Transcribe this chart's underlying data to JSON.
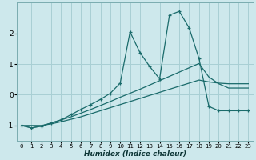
{
  "xlabel": "Humidex (Indice chaleur)",
  "background_color": "#cde8ec",
  "grid_color": "#a8cfd4",
  "line_color": "#1a6b6b",
  "xlim": [
    -0.5,
    23.5
  ],
  "ylim": [
    -1.5,
    3.0
  ],
  "yticks": [
    -1,
    0,
    1,
    2
  ],
  "xticks": [
    0,
    1,
    2,
    3,
    4,
    5,
    6,
    7,
    8,
    9,
    10,
    11,
    12,
    13,
    14,
    15,
    16,
    17,
    18,
    19,
    20,
    21,
    22,
    23
  ],
  "series1_x": [
    0,
    1,
    2,
    3,
    4,
    5,
    6,
    7,
    8,
    9,
    10,
    11,
    12,
    13,
    14,
    15,
    16,
    17,
    18,
    19,
    20,
    21,
    22,
    23
  ],
  "series1_y": [
    -1.0,
    -1.0,
    -1.0,
    -0.95,
    -0.88,
    -0.8,
    -0.72,
    -0.62,
    -0.52,
    -0.42,
    -0.32,
    -0.22,
    -0.12,
    -0.02,
    0.08,
    0.18,
    0.28,
    0.38,
    0.48,
    0.42,
    0.38,
    0.36,
    0.36,
    0.36
  ],
  "series2_x": [
    0,
    1,
    2,
    3,
    4,
    5,
    6,
    7,
    8,
    9,
    10,
    11,
    12,
    13,
    14,
    15,
    16,
    17,
    18,
    19,
    20,
    21,
    22,
    23
  ],
  "series2_y": [
    -1.0,
    -1.08,
    -1.02,
    -0.92,
    -0.82,
    -0.72,
    -0.6,
    -0.48,
    -0.35,
    -0.22,
    -0.08,
    0.05,
    0.18,
    0.32,
    0.46,
    0.6,
    0.74,
    0.88,
    1.02,
    0.58,
    0.36,
    0.22,
    0.22,
    0.22
  ],
  "series3_x": [
    0,
    1,
    2,
    3,
    4,
    5,
    6,
    7,
    8,
    9,
    10,
    11,
    12,
    13,
    14,
    15,
    16,
    17,
    18,
    19,
    20,
    21,
    22,
    23
  ],
  "series3_y": [
    -1.0,
    -1.08,
    -1.02,
    -0.92,
    -0.82,
    -0.65,
    -0.48,
    -0.32,
    -0.15,
    0.05,
    0.38,
    2.05,
    1.38,
    0.92,
    0.52,
    2.6,
    2.72,
    2.18,
    1.18,
    -0.38,
    -0.52,
    -0.52,
    -0.52,
    -0.52
  ]
}
